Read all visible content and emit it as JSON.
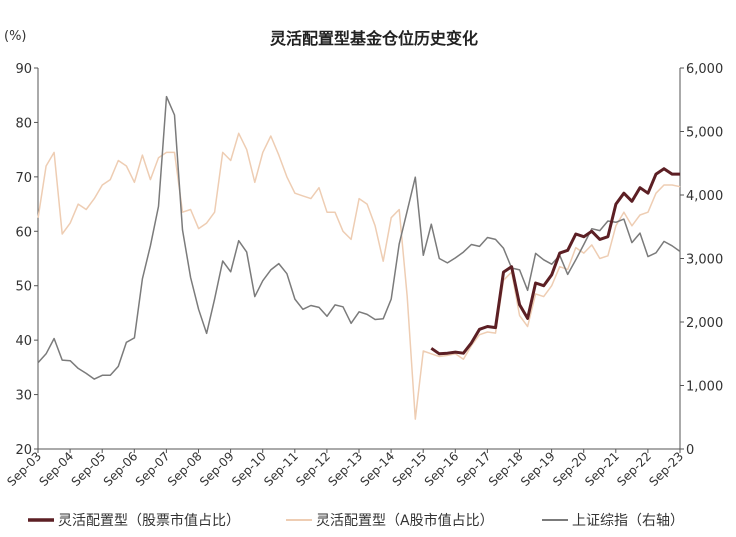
{
  "chart_data": {
    "type": "line",
    "title": "灵活配置型基金仓位历史变化",
    "y_left_unit": "(%)",
    "y_left_range": [
      20,
      90
    ],
    "y_left_ticks": [
      "20",
      "30",
      "40",
      "50",
      "60",
      "70",
      "80",
      "90"
    ],
    "y_right_range": [
      0,
      6000
    ],
    "y_right_ticks": [
      "0",
      "1,000",
      "2,000",
      "3,000",
      "4,000",
      "5,000",
      "6,000"
    ],
    "x_range": [
      2003.667,
      2023.667
    ],
    "x_ticks": [
      "Sep-03",
      "Sep-04",
      "Sep-05",
      "Sep-06",
      "Sep-07",
      "Sep-08",
      "Sep-09",
      "Sep-10",
      "Sep-11",
      "Sep-12",
      "Sep-13",
      "Sep-14",
      "Sep-15",
      "Sep-16",
      "Sep-17",
      "Sep-18",
      "Sep-19",
      "Sep-20",
      "Sep-21",
      "Sep-22",
      "Sep-23"
    ],
    "grid": false,
    "legend_position": "bottom",
    "series": [
      {
        "name": "灵活配置型（股票市值占比）",
        "axis": "left",
        "color": "#5c1f24",
        "width": 3,
        "points": [
          [
            2015.92,
            38.5
          ],
          [
            2016.17,
            37.5
          ],
          [
            2016.42,
            37.6
          ],
          [
            2016.67,
            37.8
          ],
          [
            2016.92,
            37.6
          ],
          [
            2017.17,
            39.5
          ],
          [
            2017.42,
            42.0
          ],
          [
            2017.67,
            42.5
          ],
          [
            2017.92,
            42.3
          ],
          [
            2018.17,
            52.5
          ],
          [
            2018.42,
            53.5
          ],
          [
            2018.67,
            46.5
          ],
          [
            2018.92,
            44.0
          ],
          [
            2019.17,
            50.5
          ],
          [
            2019.42,
            50.0
          ],
          [
            2019.67,
            52.0
          ],
          [
            2019.92,
            56.0
          ],
          [
            2020.17,
            56.5
          ],
          [
            2020.42,
            59.5
          ],
          [
            2020.67,
            59.0
          ],
          [
            2020.92,
            60.0
          ],
          [
            2021.17,
            58.5
          ],
          [
            2021.42,
            59.0
          ],
          [
            2021.67,
            65.0
          ],
          [
            2021.92,
            67.0
          ],
          [
            2022.17,
            65.5
          ],
          [
            2022.42,
            68.0
          ],
          [
            2022.67,
            67.0
          ],
          [
            2022.92,
            70.5
          ],
          [
            2023.17,
            71.5
          ],
          [
            2023.42,
            70.5
          ],
          [
            2023.67,
            70.5
          ]
        ]
      },
      {
        "name": "灵活配置型（A股市值占比）",
        "axis": "left",
        "color": "#eecdb3",
        "width": 1.5,
        "points": [
          [
            2003.67,
            62.5
          ],
          [
            2003.92,
            72.0
          ],
          [
            2004.17,
            74.5
          ],
          [
            2004.42,
            59.5
          ],
          [
            2004.67,
            61.5
          ],
          [
            2004.92,
            65.0
          ],
          [
            2005.17,
            64.0
          ],
          [
            2005.42,
            66.0
          ],
          [
            2005.67,
            68.5
          ],
          [
            2005.92,
            69.5
          ],
          [
            2006.17,
            73.0
          ],
          [
            2006.42,
            72.0
          ],
          [
            2006.67,
            69.0
          ],
          [
            2006.92,
            74.0
          ],
          [
            2007.17,
            69.5
          ],
          [
            2007.42,
            73.5
          ],
          [
            2007.67,
            74.5
          ],
          [
            2007.92,
            74.5
          ],
          [
            2008.17,
            63.5
          ],
          [
            2008.42,
            64.0
          ],
          [
            2008.67,
            60.5
          ],
          [
            2008.92,
            61.5
          ],
          [
            2009.17,
            63.5
          ],
          [
            2009.42,
            74.5
          ],
          [
            2009.67,
            73.0
          ],
          [
            2009.92,
            78.0
          ],
          [
            2010.17,
            75.0
          ],
          [
            2010.42,
            69.0
          ],
          [
            2010.67,
            74.5
          ],
          [
            2010.92,
            77.5
          ],
          [
            2011.17,
            74.0
          ],
          [
            2011.42,
            70.0
          ],
          [
            2011.67,
            67.0
          ],
          [
            2011.92,
            66.5
          ],
          [
            2012.17,
            66.0
          ],
          [
            2012.42,
            68.0
          ],
          [
            2012.67,
            63.5
          ],
          [
            2012.92,
            63.5
          ],
          [
            2013.17,
            60.0
          ],
          [
            2013.42,
            58.5
          ],
          [
            2013.67,
            66.0
          ],
          [
            2013.92,
            65.0
          ],
          [
            2014.17,
            61.0
          ],
          [
            2014.42,
            54.5
          ],
          [
            2014.67,
            62.5
          ],
          [
            2014.92,
            64.0
          ],
          [
            2015.17,
            48.0
          ],
          [
            2015.42,
            25.5
          ],
          [
            2015.67,
            38.0
          ],
          [
            2015.92,
            37.5
          ],
          [
            2016.17,
            37.0
          ],
          [
            2016.42,
            37.2
          ],
          [
            2016.67,
            37.5
          ],
          [
            2016.92,
            36.5
          ],
          [
            2017.17,
            39.0
          ],
          [
            2017.42,
            41.0
          ],
          [
            2017.67,
            41.5
          ],
          [
            2017.92,
            41.3
          ],
          [
            2018.17,
            51.0
          ],
          [
            2018.42,
            52.5
          ],
          [
            2018.67,
            44.5
          ],
          [
            2018.92,
            42.5
          ],
          [
            2019.17,
            48.5
          ],
          [
            2019.42,
            48.0
          ],
          [
            2019.67,
            50.0
          ],
          [
            2019.92,
            53.5
          ],
          [
            2020.17,
            53.0
          ],
          [
            2020.42,
            57.0
          ],
          [
            2020.67,
            56.0
          ],
          [
            2020.92,
            57.5
          ],
          [
            2021.17,
            55.0
          ],
          [
            2021.42,
            55.5
          ],
          [
            2021.67,
            61.0
          ],
          [
            2021.92,
            63.5
          ],
          [
            2022.17,
            61.0
          ],
          [
            2022.42,
            63.0
          ],
          [
            2022.67,
            63.5
          ],
          [
            2022.92,
            67.0
          ],
          [
            2023.17,
            68.5
          ],
          [
            2023.42,
            68.5
          ],
          [
            2023.67,
            68.2
          ]
        ]
      },
      {
        "name": "上证综指（右轴）",
        "axis": "right",
        "color": "#7b7b7b",
        "width": 1.5,
        "points": [
          [
            2003.67,
            1360
          ],
          [
            2003.92,
            1500
          ],
          [
            2004.17,
            1740
          ],
          [
            2004.42,
            1400
          ],
          [
            2004.67,
            1390
          ],
          [
            2004.92,
            1270
          ],
          [
            2005.17,
            1190
          ],
          [
            2005.42,
            1100
          ],
          [
            2005.67,
            1160
          ],
          [
            2005.92,
            1160
          ],
          [
            2006.17,
            1300
          ],
          [
            2006.42,
            1680
          ],
          [
            2006.67,
            1750
          ],
          [
            2006.92,
            2680
          ],
          [
            2007.17,
            3200
          ],
          [
            2007.42,
            3820
          ],
          [
            2007.67,
            5550
          ],
          [
            2007.92,
            5260
          ],
          [
            2008.17,
            3450
          ],
          [
            2008.42,
            2700
          ],
          [
            2008.67,
            2200
          ],
          [
            2008.92,
            1820
          ],
          [
            2009.17,
            2360
          ],
          [
            2009.42,
            2960
          ],
          [
            2009.67,
            2790
          ],
          [
            2009.92,
            3280
          ],
          [
            2010.17,
            3100
          ],
          [
            2010.42,
            2400
          ],
          [
            2010.67,
            2650
          ],
          [
            2010.92,
            2820
          ],
          [
            2011.17,
            2920
          ],
          [
            2011.42,
            2760
          ],
          [
            2011.67,
            2360
          ],
          [
            2011.92,
            2200
          ],
          [
            2012.17,
            2260
          ],
          [
            2012.42,
            2230
          ],
          [
            2012.67,
            2090
          ],
          [
            2012.92,
            2270
          ],
          [
            2013.17,
            2240
          ],
          [
            2013.42,
            1980
          ],
          [
            2013.67,
            2160
          ],
          [
            2013.92,
            2120
          ],
          [
            2014.17,
            2040
          ],
          [
            2014.42,
            2050
          ],
          [
            2014.67,
            2360
          ],
          [
            2014.92,
            3230
          ],
          [
            2015.17,
            3750
          ],
          [
            2015.42,
            4280
          ],
          [
            2015.67,
            3050
          ],
          [
            2015.92,
            3540
          ],
          [
            2016.17,
            3000
          ],
          [
            2016.42,
            2930
          ],
          [
            2016.67,
            3010
          ],
          [
            2016.92,
            3100
          ],
          [
            2017.17,
            3220
          ],
          [
            2017.42,
            3190
          ],
          [
            2017.67,
            3330
          ],
          [
            2017.92,
            3300
          ],
          [
            2018.17,
            3160
          ],
          [
            2018.42,
            2850
          ],
          [
            2018.67,
            2820
          ],
          [
            2018.92,
            2500
          ],
          [
            2019.17,
            3080
          ],
          [
            2019.42,
            2980
          ],
          [
            2019.67,
            2910
          ],
          [
            2019.92,
            3050
          ],
          [
            2020.17,
            2750
          ],
          [
            2020.42,
            2980
          ],
          [
            2020.67,
            3220
          ],
          [
            2020.92,
            3470
          ],
          [
            2021.17,
            3440
          ],
          [
            2021.42,
            3590
          ],
          [
            2021.67,
            3570
          ],
          [
            2021.92,
            3620
          ],
          [
            2022.17,
            3250
          ],
          [
            2022.42,
            3400
          ],
          [
            2022.67,
            3030
          ],
          [
            2022.92,
            3090
          ],
          [
            2023.17,
            3270
          ],
          [
            2023.42,
            3200
          ],
          [
            2023.67,
            3110
          ]
        ]
      }
    ]
  }
}
